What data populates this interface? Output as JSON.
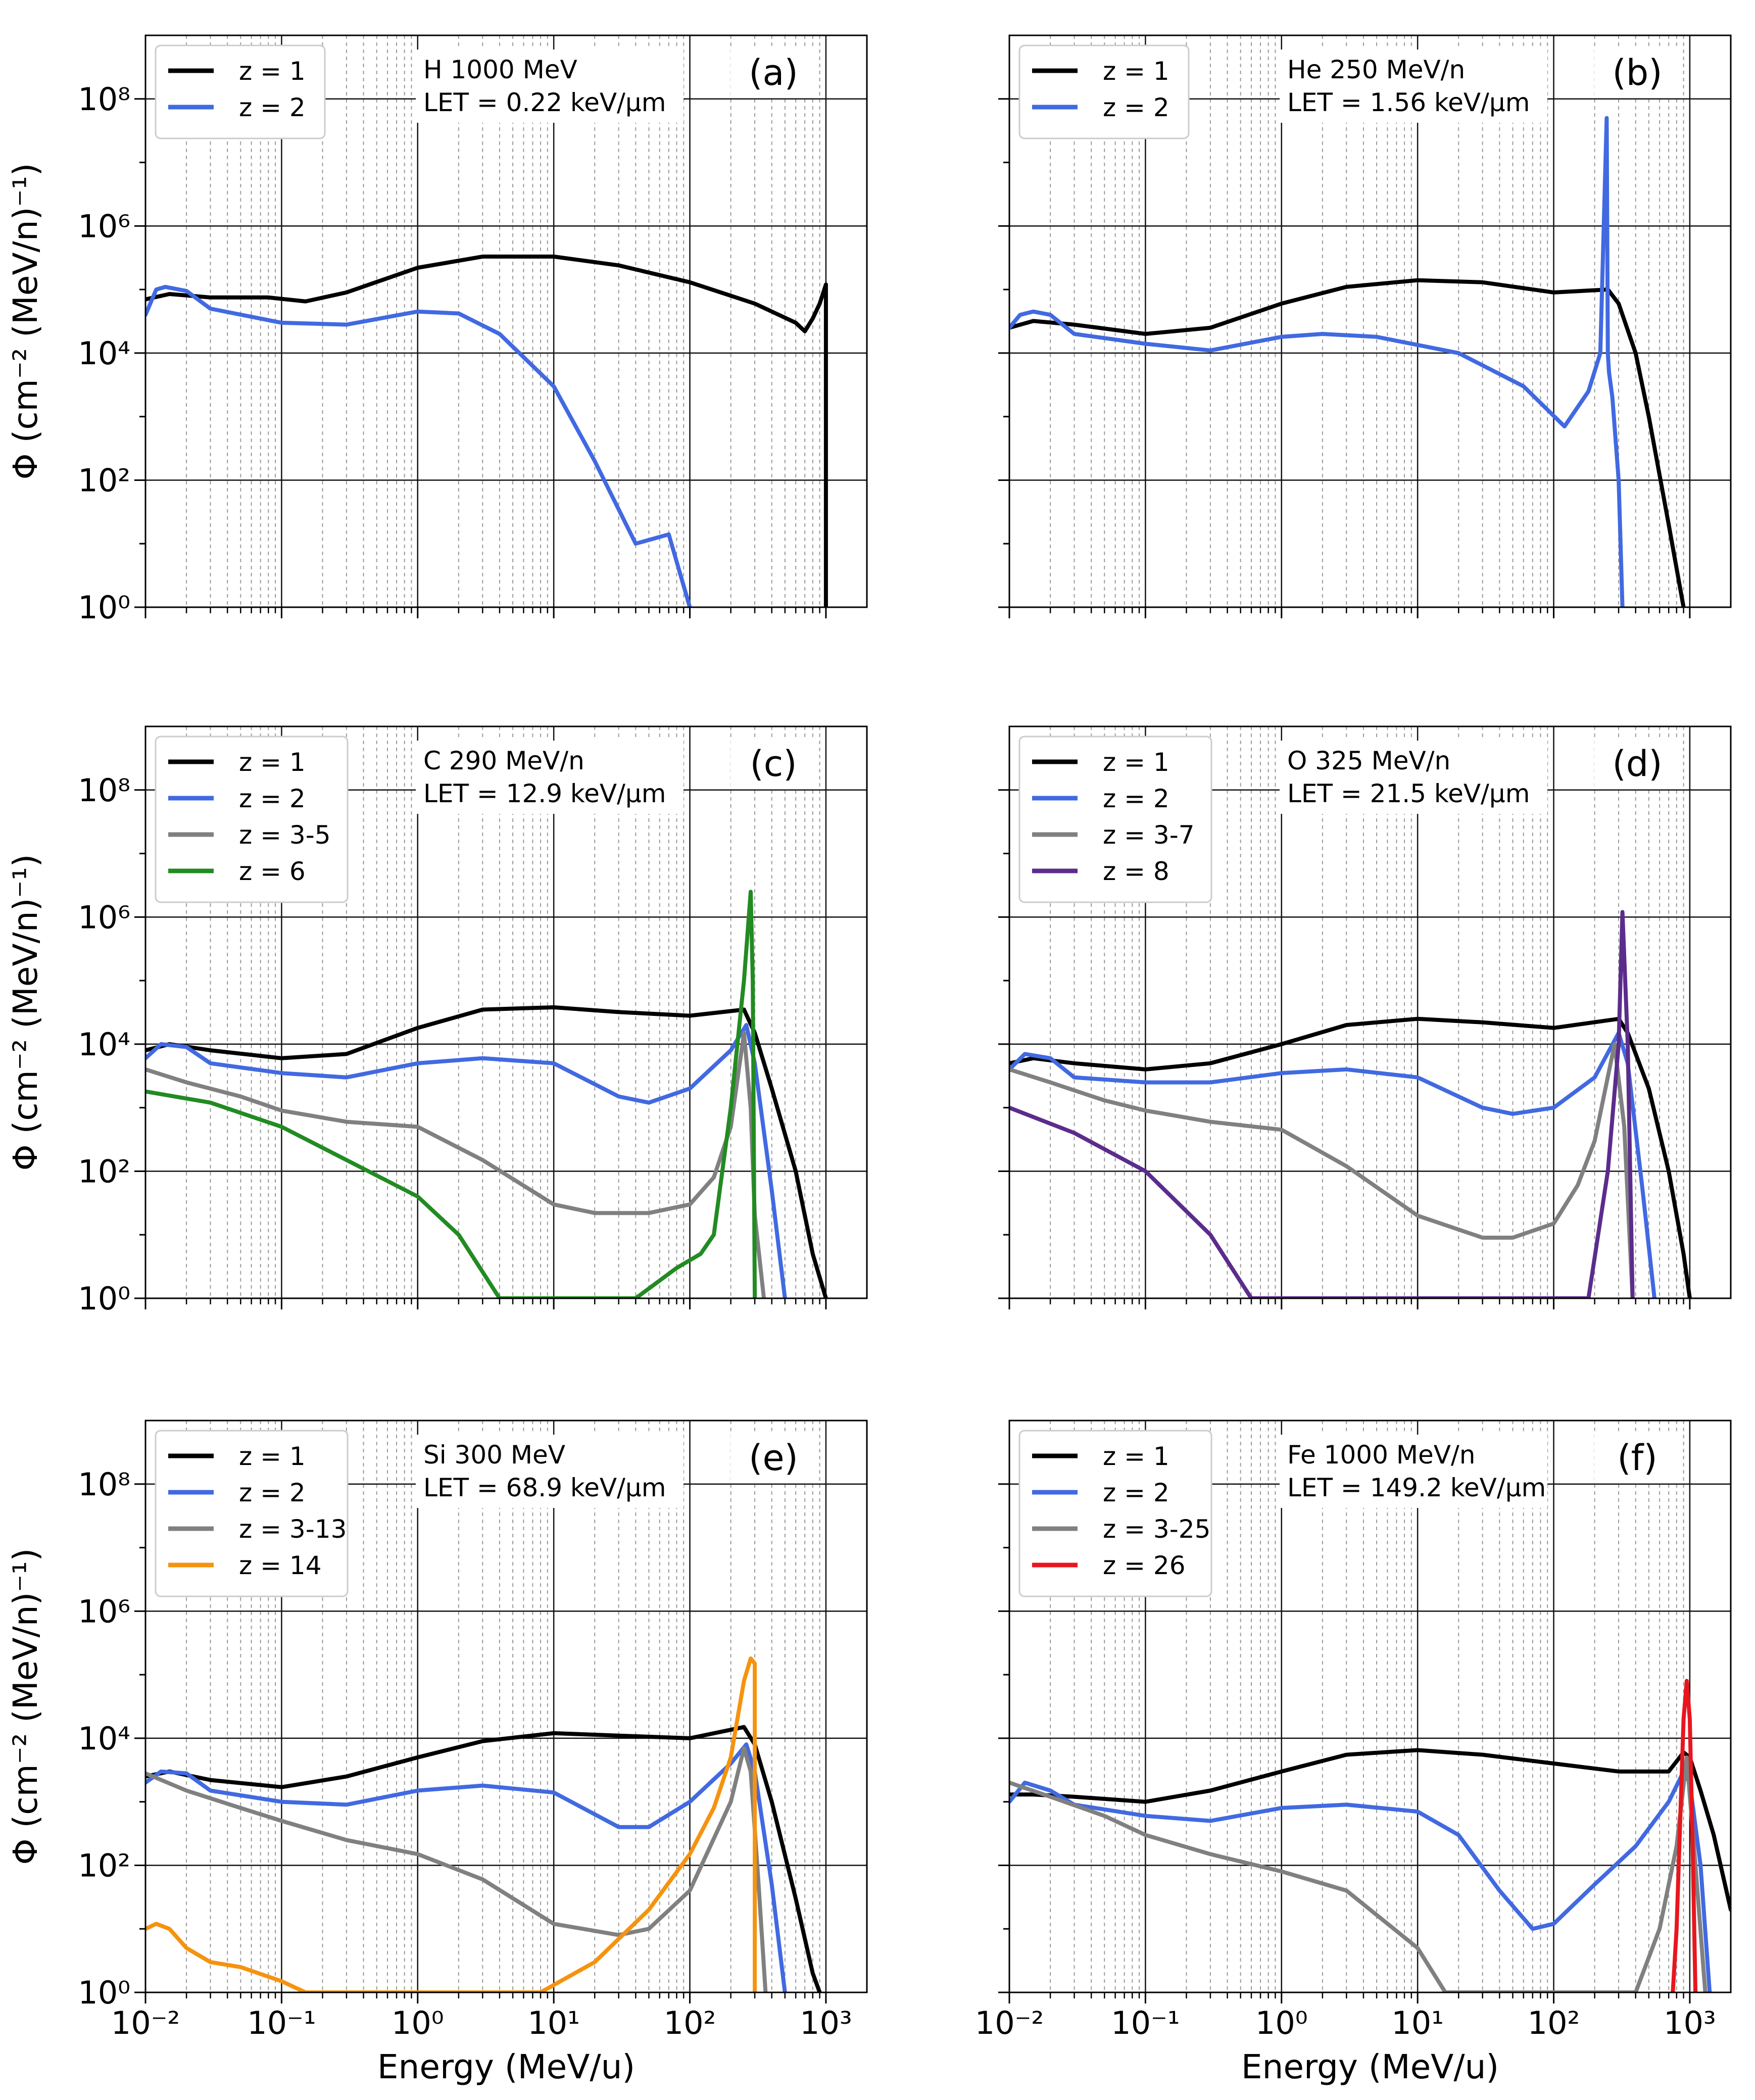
{
  "figure": {
    "ylabel": "Φ (cm⁻² (MeV/n)⁻¹)",
    "xlabel": "Energy (MeV/u)"
  },
  "chart_data": [
    {
      "type": "line",
      "panel": "(a)",
      "title": "H 1000 MeV",
      "subtitle": "LET = 0.22 keV/μm",
      "xlabel": "",
      "ylabel": "Φ (cm⁻² (MeV/n)⁻¹)",
      "xscale": "log",
      "yscale": "log",
      "xlim": [
        0.01,
        2000
      ],
      "ylim": [
        1,
        1000000000
      ],
      "xticks": [
        "10⁻²",
        "10⁻¹",
        "10⁰",
        "10¹",
        "10²",
        "10³"
      ],
      "yticks": [
        "10⁰",
        "10²",
        "10⁴",
        "10⁶",
        "10⁸"
      ],
      "legend_position": "top-left",
      "series": [
        {
          "name": "z = 1",
          "color": "#000000",
          "x": [
            0.01,
            0.015,
            0.03,
            0.08,
            0.15,
            0.3,
            1,
            3,
            10,
            30,
            100,
            300,
            600,
            700,
            800,
            900,
            1000,
            1000
          ],
          "y": [
            70000,
            85000,
            75000,
            75000,
            65000,
            90000,
            220000,
            330000,
            330000,
            240000,
            130000,
            60000,
            30000,
            22000,
            35000,
            60000,
            120000,
            1
          ]
        },
        {
          "name": "z = 2",
          "color": "#4169E1",
          "x": [
            0.01,
            0.012,
            0.014,
            0.02,
            0.03,
            0.1,
            0.3,
            1,
            2,
            4,
            10,
            20,
            40,
            70,
            100
          ],
          "y": [
            40000,
            100000,
            110000,
            95000,
            50000,
            30000,
            28000,
            45000,
            42000,
            20000,
            3000,
            200,
            10,
            14,
            1
          ]
        }
      ]
    },
    {
      "type": "line",
      "panel": "(b)",
      "title": "He 250 MeV/n",
      "subtitle": "LET = 1.56 keV/μm",
      "xlabel": "",
      "xscale": "log",
      "yscale": "log",
      "xlim": [
        0.01,
        2000
      ],
      "ylim": [
        1,
        1000000000
      ],
      "xticks": [
        "10⁻²",
        "10⁻¹",
        "10⁰",
        "10¹",
        "10²",
        "10³"
      ],
      "yticks": [
        "10⁰",
        "10²",
        "10⁴",
        "10⁶",
        "10⁸"
      ],
      "legend_position": "top-left",
      "series": [
        {
          "name": "z = 1",
          "color": "#000000",
          "x": [
            0.01,
            0.015,
            0.03,
            0.1,
            0.3,
            1,
            3,
            10,
            30,
            100,
            250,
            300,
            400,
            500,
            700,
            900
          ],
          "y": [
            25000,
            32000,
            28000,
            20000,
            25000,
            60000,
            110000,
            140000,
            130000,
            90000,
            100000,
            60000,
            10000,
            1000,
            20,
            1
          ]
        },
        {
          "name": "z = 2",
          "color": "#4169E1",
          "x": [
            0.01,
            0.012,
            0.015,
            0.02,
            0.03,
            0.1,
            0.3,
            1,
            2,
            5,
            20,
            60,
            120,
            180,
            220,
            245,
            250,
            255,
            270,
            300,
            320
          ],
          "y": [
            25000,
            40000,
            45000,
            40000,
            20000,
            14000,
            11000,
            18000,
            20000,
            18000,
            10000,
            3000,
            700,
            2500,
            10000,
            50000000,
            10000,
            5000,
            2000,
            100,
            1
          ]
        }
      ]
    },
    {
      "type": "line",
      "panel": "(c)",
      "title": "C 290 MeV/n",
      "subtitle": "LET = 12.9 keV/μm",
      "xlabel": "",
      "ylabel": "Φ (cm⁻² (MeV/n)⁻¹)",
      "xscale": "log",
      "yscale": "log",
      "xlim": [
        0.01,
        2000
      ],
      "ylim": [
        1,
        1000000000
      ],
      "xticks": [
        "10⁻²",
        "10⁻¹",
        "10⁰",
        "10¹",
        "10²",
        "10³"
      ],
      "yticks": [
        "10⁰",
        "10²",
        "10⁴",
        "10⁶",
        "10⁸"
      ],
      "legend_position": "top-left",
      "series": [
        {
          "name": "z = 1",
          "color": "#000000",
          "x": [
            0.01,
            0.015,
            0.03,
            0.1,
            0.3,
            1,
            3,
            10,
            30,
            100,
            250,
            300,
            400,
            600,
            800,
            1000
          ],
          "y": [
            8000,
            10000,
            8000,
            6000,
            7000,
            18000,
            35000,
            38000,
            32000,
            28000,
            35000,
            15000,
            2000,
            100,
            5,
            1
          ]
        },
        {
          "name": "z = 2",
          "color": "#4169E1",
          "x": [
            0.01,
            0.013,
            0.02,
            0.03,
            0.1,
            0.3,
            1,
            3,
            10,
            30,
            50,
            100,
            200,
            260,
            300,
            400,
            500
          ],
          "y": [
            6000,
            10000,
            9000,
            5000,
            3500,
            3000,
            5000,
            6000,
            5000,
            1500,
            1200,
            2000,
            8000,
            20000,
            5000,
            50,
            1
          ]
        },
        {
          "name": "z = 3-5",
          "color": "#808080",
          "x": [
            0.01,
            0.02,
            0.05,
            0.1,
            0.3,
            1,
            3,
            10,
            20,
            50,
            100,
            150,
            200,
            250,
            280,
            300,
            350
          ],
          "y": [
            4000,
            2500,
            1500,
            900,
            600,
            500,
            150,
            30,
            22,
            22,
            30,
            80,
            500,
            15000,
            1000,
            20,
            1
          ]
        },
        {
          "name": "z = 6",
          "color": "#228B22",
          "x": [
            0.01,
            0.03,
            0.1,
            0.3,
            1,
            2,
            4,
            40,
            80,
            120,
            150,
            200,
            250,
            280,
            290,
            300
          ],
          "y": [
            1800,
            1200,
            500,
            150,
            40,
            10,
            1,
            1,
            3,
            5,
            10,
            1000,
            100000,
            2500000,
            100000,
            1
          ]
        }
      ]
    },
    {
      "type": "line",
      "panel": "(d)",
      "title": "O 325 MeV/n",
      "subtitle": "LET = 21.5 keV/μm",
      "xlabel": "",
      "xscale": "log",
      "yscale": "log",
      "xlim": [
        0.01,
        2000
      ],
      "ylim": [
        1,
        1000000000
      ],
      "xticks": [
        "10⁻²",
        "10⁻¹",
        "10⁰",
        "10¹",
        "10²",
        "10³"
      ],
      "yticks": [
        "10⁰",
        "10²",
        "10⁴",
        "10⁶",
        "10⁸"
      ],
      "legend_position": "top-left",
      "series": [
        {
          "name": "z = 1",
          "color": "#000000",
          "x": [
            0.01,
            0.015,
            0.03,
            0.1,
            0.3,
            1,
            3,
            10,
            30,
            100,
            300,
            350,
            500,
            700,
            900,
            1000
          ],
          "y": [
            5000,
            6000,
            5000,
            4000,
            5000,
            10000,
            20000,
            25000,
            22000,
            18000,
            25000,
            15000,
            2000,
            100,
            5,
            1
          ]
        },
        {
          "name": "z = 2",
          "color": "#4169E1",
          "x": [
            0.01,
            0.013,
            0.02,
            0.03,
            0.1,
            0.3,
            1,
            3,
            10,
            30,
            50,
            100,
            200,
            300,
            350,
            450,
            550
          ],
          "y": [
            4000,
            7000,
            6000,
            3000,
            2500,
            2500,
            3500,
            4000,
            3000,
            1000,
            800,
            1000,
            3000,
            15000,
            5000,
            50,
            1
          ]
        },
        {
          "name": "z = 3-7",
          "color": "#808080",
          "x": [
            0.01,
            0.02,
            0.05,
            0.1,
            0.3,
            1,
            3,
            10,
            30,
            50,
            100,
            150,
            200,
            280,
            330,
            380
          ],
          "y": [
            4000,
            2500,
            1300,
            900,
            600,
            450,
            120,
            20,
            9,
            9,
            15,
            60,
            300,
            10000,
            500,
            1
          ]
        },
        {
          "name": "z = 8",
          "color": "#5B2C8C",
          "x": [
            0.01,
            0.03,
            0.1,
            0.3,
            0.6,
            180,
            250,
            300,
            320,
            350,
            380
          ],
          "y": [
            1000,
            400,
            100,
            10,
            1,
            1,
            100,
            10000,
            1200000,
            10000,
            1
          ]
        }
      ]
    },
    {
      "type": "line",
      "panel": "(e)",
      "title": "Si 300 MeV",
      "subtitle": "LET = 68.9 keV/μm",
      "xlabel": "Energy (MeV/u)",
      "ylabel": "Φ (cm⁻² (MeV/n)⁻¹)",
      "xscale": "log",
      "yscale": "log",
      "xlim": [
        0.01,
        2000
      ],
      "ylim": [
        1,
        1000000000
      ],
      "xticks": [
        "10⁻²",
        "10⁻¹",
        "10⁰",
        "10¹",
        "10²",
        "10³"
      ],
      "yticks": [
        "10⁰",
        "10²",
        "10⁴",
        "10⁶",
        "10⁸"
      ],
      "legend_position": "top-left",
      "series": [
        {
          "name": "z = 1",
          "color": "#000000",
          "x": [
            0.01,
            0.015,
            0.03,
            0.1,
            0.3,
            1,
            3,
            10,
            30,
            100,
            250,
            300,
            400,
            600,
            800,
            900
          ],
          "y": [
            2500,
            3000,
            2200,
            1700,
            2500,
            5000,
            9000,
            12000,
            11000,
            10000,
            15000,
            8000,
            1000,
            30,
            2,
            1
          ]
        },
        {
          "name": "z = 2",
          "color": "#4169E1",
          "x": [
            0.01,
            0.013,
            0.02,
            0.03,
            0.1,
            0.3,
            1,
            3,
            10,
            30,
            50,
            100,
            200,
            260,
            300,
            400,
            500
          ],
          "y": [
            2000,
            3000,
            2800,
            1500,
            1000,
            900,
            1500,
            1800,
            1400,
            400,
            400,
            1000,
            4000,
            8000,
            3000,
            50,
            1
          ]
        },
        {
          "name": "z = 3-13",
          "color": "#808080",
          "x": [
            0.01,
            0.02,
            0.05,
            0.1,
            0.3,
            1,
            3,
            10,
            30,
            50,
            100,
            200,
            250,
            280,
            320,
            360
          ],
          "y": [
            2800,
            1500,
            800,
            500,
            250,
            150,
            60,
            12,
            8,
            10,
            40,
            1000,
            7000,
            3000,
            50,
            1
          ]
        },
        {
          "name": "z = 14",
          "color": "#F5930F",
          "x": [
            0.01,
            0.012,
            0.015,
            0.02,
            0.03,
            0.05,
            0.1,
            0.15,
            8,
            20,
            50,
            100,
            150,
            200,
            250,
            280,
            300,
            300
          ],
          "y": [
            10,
            12,
            10,
            5,
            3,
            2.5,
            1.5,
            1,
            1,
            3,
            20,
            150,
            800,
            5000,
            80000,
            180000,
            150000,
            1
          ]
        }
      ]
    },
    {
      "type": "line",
      "panel": "(f)",
      "title": "Fe 1000 MeV/n",
      "subtitle": "LET = 149.2 keV/μm",
      "xlabel": "Energy (MeV/u)",
      "xscale": "log",
      "yscale": "log",
      "xlim": [
        0.01,
        2000
      ],
      "ylim": [
        1,
        1000000000
      ],
      "xticks": [
        "10⁻²",
        "10⁻¹",
        "10⁰",
        "10¹",
        "10²",
        "10³"
      ],
      "yticks": [
        "10⁰",
        "10²",
        "10⁴",
        "10⁶",
        "10⁸"
      ],
      "legend_position": "top-left",
      "series": [
        {
          "name": "z = 1",
          "color": "#000000",
          "x": [
            0.01,
            0.015,
            0.03,
            0.1,
            0.3,
            1,
            3,
            10,
            30,
            100,
            300,
            700,
            900,
            1000,
            1200,
            1500,
            2000
          ],
          "y": [
            1300,
            1300,
            1200,
            1000,
            1500,
            3000,
            5500,
            6500,
            5500,
            4000,
            3000,
            3000,
            6000,
            5000,
            1500,
            300,
            20
          ]
        },
        {
          "name": "z = 2",
          "color": "#4169E1",
          "x": [
            0.01,
            0.013,
            0.02,
            0.03,
            0.1,
            0.3,
            1,
            3,
            10,
            20,
            40,
            70,
            100,
            200,
            400,
            700,
            900,
            1000,
            1200,
            1400
          ],
          "y": [
            1000,
            2000,
            1500,
            900,
            600,
            500,
            800,
            900,
            700,
            300,
            40,
            10,
            12,
            50,
            200,
            1000,
            3000,
            2000,
            100,
            1
          ]
        },
        {
          "name": "z = 3-25",
          "color": "#808080",
          "x": [
            0.01,
            0.02,
            0.05,
            0.1,
            0.3,
            1,
            3,
            10,
            16,
            400,
            600,
            800,
            950,
            1100,
            1300
          ],
          "y": [
            2000,
            1200,
            600,
            300,
            150,
            80,
            40,
            5,
            1,
            1,
            10,
            200,
            5000,
            100,
            1
          ]
        },
        {
          "name": "z = 26",
          "color": "#E8161E",
          "x": [
            750,
            800,
            850,
            900,
            950,
            1000,
            1050,
            1100
          ],
          "y": [
            1,
            10,
            500,
            20000,
            80000,
            20000,
            200,
            1
          ]
        }
      ]
    }
  ]
}
